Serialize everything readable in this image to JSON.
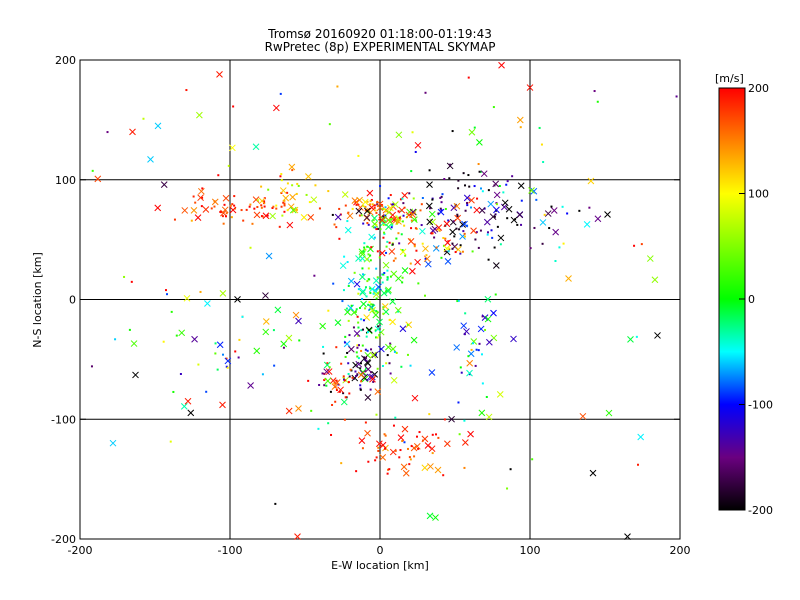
{
  "chart_data": {
    "type": "scatter",
    "title": [
      "Tromsø 20160920 01:18:00-01:19:43",
      "RwPretec (8p) EXPERIMENTAL SKYMAP"
    ],
    "xlabel": "E-W location [km]",
    "ylabel": "N-S location [km]",
    "xlim": [
      -200,
      200
    ],
    "ylim": [
      -200,
      200
    ],
    "xticks": [
      "-200",
      "-100",
      "0",
      "100",
      "200"
    ],
    "yticks": [
      "-200",
      "-100",
      "0",
      "100",
      "200"
    ],
    "grid": "lines at -100, 0, 100 on both axes",
    "colorbar": {
      "unit": "[m/s]",
      "range": [
        -200,
        200
      ],
      "ticks": [
        "200",
        "100",
        "0",
        "-100",
        "-200"
      ],
      "colormap": "rainbow: black (-200) → purple → blue → cyan → green (0) → yellow → orange → red (200)"
    },
    "marker_types": [
      "x",
      "dot"
    ],
    "point_clusters": [
      {
        "center": [
          -5,
          5
        ],
        "spread": [
          12,
          35
        ],
        "count": 170,
        "value_mean": 0,
        "value_sd": 45
      },
      {
        "center": [
          -95,
          78
        ],
        "spread": [
          22,
          8
        ],
        "count": 70,
        "value_mean": 180,
        "value_sd": 25
      },
      {
        "center": [
          -60,
          90
        ],
        "spread": [
          12,
          10
        ],
        "count": 30,
        "value_mean": 120,
        "value_sd": 40
      },
      {
        "center": [
          -5,
          75
        ],
        "spread": [
          15,
          6
        ],
        "count": 50,
        "value_mean": 170,
        "value_sd": 30
      },
      {
        "center": [
          10,
          68
        ],
        "spread": [
          10,
          5
        ],
        "count": 35,
        "value_mean": 40,
        "value_sd": 30
      },
      {
        "center": [
          60,
          70
        ],
        "spread": [
          35,
          18
        ],
        "count": 160,
        "value_mean": -140,
        "value_sd": 60
      },
      {
        "center": [
          25,
          55
        ],
        "spread": [
          20,
          15
        ],
        "count": 60,
        "value_mean": 170,
        "value_sd": 40
      },
      {
        "center": [
          -15,
          -55
        ],
        "spread": [
          10,
          15
        ],
        "count": 60,
        "value_mean": -160,
        "value_sd": 40
      },
      {
        "center": [
          -25,
          -70
        ],
        "spread": [
          10,
          10
        ],
        "count": 30,
        "value_mean": 180,
        "value_sd": 20
      },
      {
        "center": [
          15,
          -125
        ],
        "spread": [
          20,
          12
        ],
        "count": 60,
        "value_mean": 180,
        "value_sd": 30
      },
      {
        "center": [
          62,
          -45
        ],
        "spread": [
          8,
          25
        ],
        "count": 35,
        "value_mean": -40,
        "value_sd": 70
      },
      {
        "center": [
          -80,
          -40
        ],
        "spread": [
          40,
          30
        ],
        "count": 60,
        "value_mean": -20,
        "value_sd": 110
      },
      {
        "center": [
          0,
          30
        ],
        "spread": [
          150,
          110
        ],
        "count": 160,
        "value_mean": 40,
        "value_sd": 130
      }
    ],
    "notable_points": [
      {
        "x": -107,
        "y": 188,
        "value": 190,
        "marker": "x"
      },
      {
        "x": 100,
        "y": 177,
        "value": 195,
        "marker": "x"
      },
      {
        "x": 185,
        "y": -30,
        "value": -200,
        "marker": "x"
      },
      {
        "x": 142,
        "y": -145,
        "value": -200,
        "marker": "x"
      },
      {
        "x": 165,
        "y": -198,
        "value": -200,
        "marker": "x"
      },
      {
        "x": -178,
        "y": -120,
        "value": -60,
        "marker": "x"
      },
      {
        "x": -165,
        "y": 140,
        "value": 190,
        "marker": "x"
      },
      {
        "x": -148,
        "y": 145,
        "value": -60,
        "marker": "x"
      },
      {
        "x": -153,
        "y": 117,
        "value": -60,
        "marker": "x"
      },
      {
        "x": -163,
        "y": -63,
        "value": -200,
        "marker": "x"
      },
      {
        "x": -128,
        "y": -85,
        "value": 190,
        "marker": "x"
      },
      {
        "x": -55,
        "y": -198,
        "value": 190,
        "marker": "x"
      },
      {
        "x": -105,
        "y": -88,
        "value": 190,
        "marker": "x"
      },
      {
        "x": 172,
        "y": -138,
        "value": 190,
        "marker": "dot"
      }
    ]
  }
}
